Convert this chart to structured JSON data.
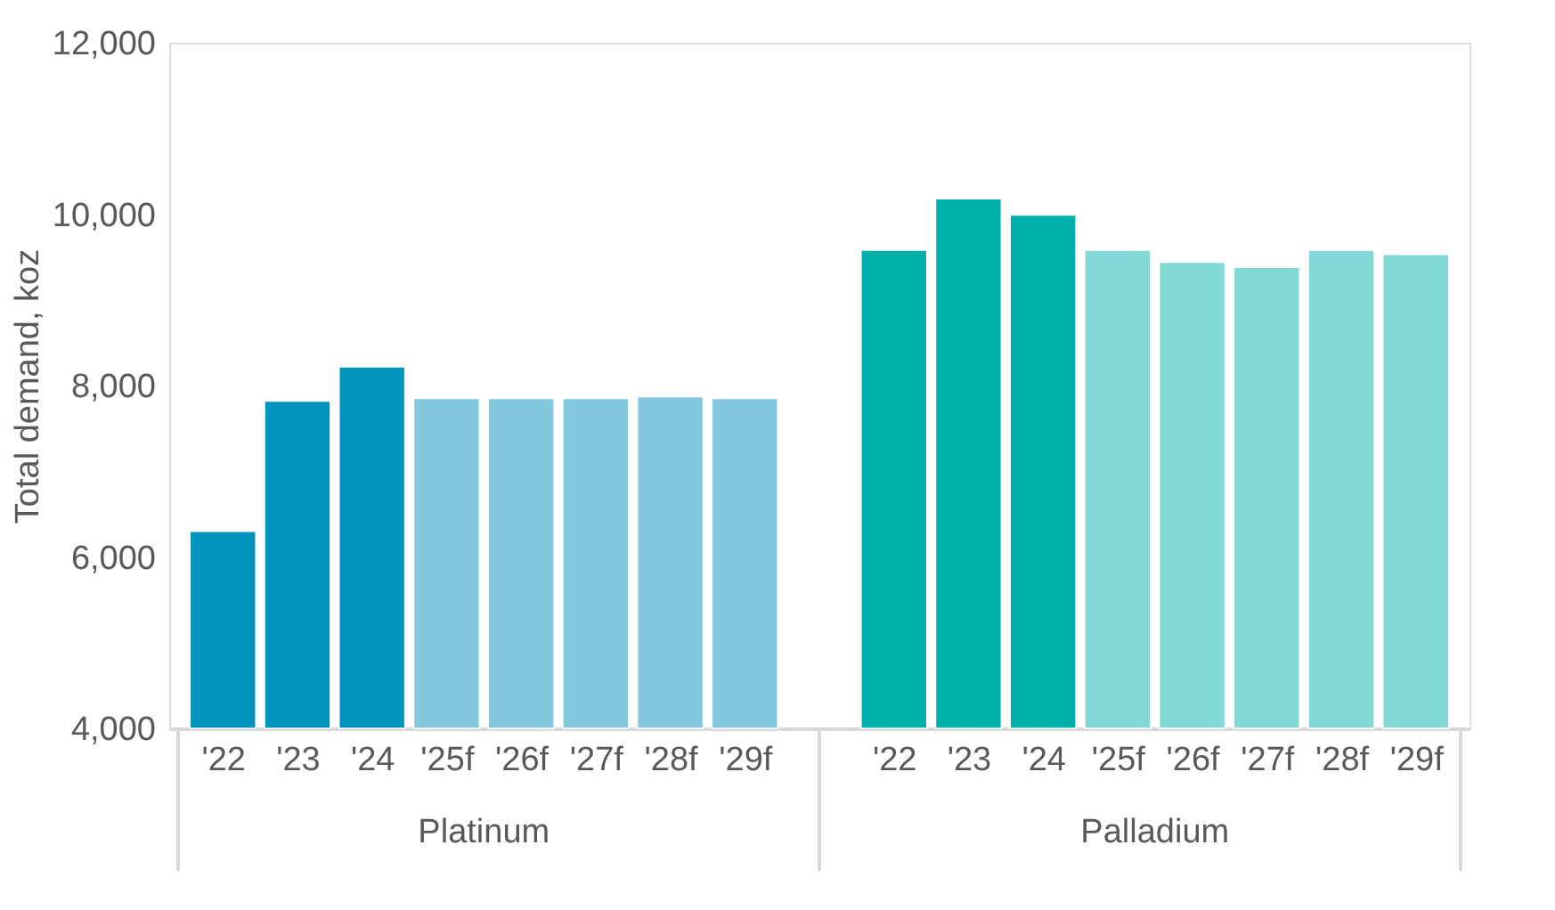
{
  "chart_data": {
    "type": "bar",
    "ylabel": "Total demand, koz",
    "categories": [
      "'22",
      "'23",
      "'24",
      "'25f",
      "'26f",
      "'27f",
      "'28f",
      "'29f",
      "'22",
      "'23",
      "'24",
      "'25f",
      "'26f",
      "'27f",
      "'28f",
      "'29f"
    ],
    "series": [
      {
        "name": "Platinum",
        "values": [
          6300,
          7820,
          8220,
          7850,
          7850,
          7850,
          7870,
          7850,
          null,
          null,
          null,
          null,
          null,
          null,
          null,
          null
        ],
        "colors": [
          "#0093bd",
          "#0093bd",
          "#0093bd",
          "#83c8de",
          "#83c8de",
          "#83c8de",
          "#83c8de",
          "#83c8de",
          null,
          null,
          null,
          null,
          null,
          null,
          null,
          null
        ]
      },
      {
        "name": "Palladium",
        "values": [
          null,
          null,
          null,
          null,
          null,
          null,
          null,
          null,
          9580,
          10180,
          9990,
          9580,
          9440,
          9380,
          9580,
          9530
        ],
        "colors": [
          null,
          null,
          null,
          null,
          null,
          null,
          null,
          null,
          "#00afaa",
          "#00afaa",
          "#00afaa",
          "#82d8d5",
          "#82d8d5",
          "#82d8d5",
          "#82d8d5",
          "#82d8d5"
        ]
      }
    ],
    "ylim": [
      4000,
      12000
    ],
    "yticks": [
      {
        "value": 4000,
        "label": "4,000"
      },
      {
        "value": 6000,
        "label": "6,000"
      },
      {
        "value": 8000,
        "label": "8,000"
      },
      {
        "value": 10000,
        "label": "10,000"
      },
      {
        "value": 12000,
        "label": "12,000"
      }
    ],
    "grid": false
  }
}
